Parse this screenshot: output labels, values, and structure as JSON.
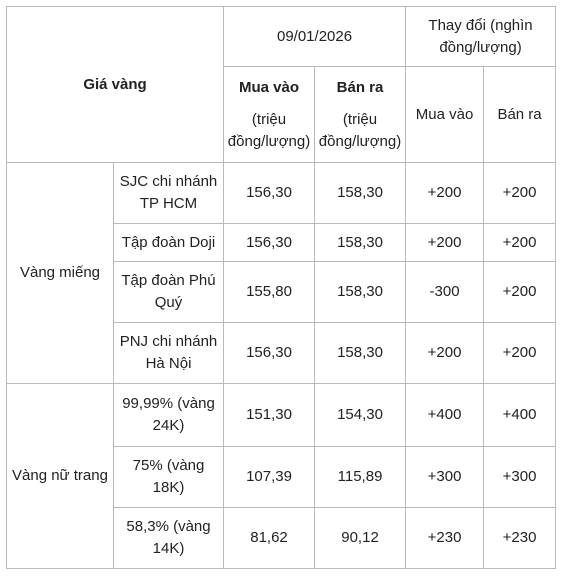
{
  "header": {
    "gold_price": "Giá vàng",
    "date": "09/01/2026",
    "change": "Thay đổi (nghìn đồng/lượng)",
    "buy": "Mua vào",
    "sell": "Bán ra",
    "unit": "(triệu đồng/lượng)",
    "change_buy": "Mua vào",
    "change_sell": "Bán ra"
  },
  "groups": [
    {
      "name": "Vàng miếng",
      "rows": [
        {
          "label": "SJC chi nhánh TP HCM",
          "buy": "156,30",
          "sell": "158,30",
          "chg_buy": "+200",
          "chg_sell": "+200"
        },
        {
          "label": "Tập đoàn Doji",
          "buy": "156,30",
          "sell": "158,30",
          "chg_buy": "+200",
          "chg_sell": "+200"
        },
        {
          "label": "Tập đoàn Phú Quý",
          "buy": "155,80",
          "sell": "158,30",
          "chg_buy": "-300",
          "chg_sell": "+200"
        },
        {
          "label": "PNJ chi nhánh Hà Nội",
          "buy": "156,30",
          "sell": "158,30",
          "chg_buy": "+200",
          "chg_sell": "+200"
        }
      ]
    },
    {
      "name": "Vàng nữ trang",
      "rows": [
        {
          "label": "99,99% (vàng 24K)",
          "buy": "151,30",
          "sell": "154,30",
          "chg_buy": "+400",
          "chg_sell": "+400"
        },
        {
          "label": "75% (vàng 18K)",
          "buy": "107,39",
          "sell": "115,89",
          "chg_buy": "+300",
          "chg_sell": "+300"
        },
        {
          "label": "58,3% (vàng 14K)",
          "buy": "81,62",
          "sell": "90,12",
          "chg_buy": "+230",
          "chg_sell": "+230"
        }
      ]
    }
  ]
}
